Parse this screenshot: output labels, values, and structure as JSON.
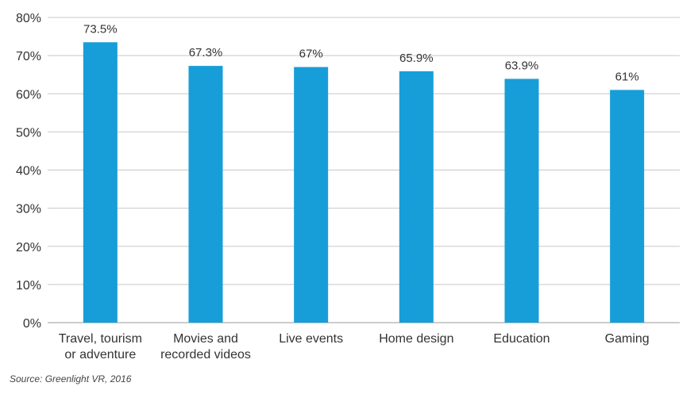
{
  "chart_data": {
    "type": "bar",
    "categories": [
      [
        "Travel, tourism",
        "or adventure"
      ],
      [
        "Movies and",
        "recorded videos"
      ],
      [
        "Live events"
      ],
      [
        "Home design"
      ],
      [
        "Education"
      ],
      [
        "Gaming"
      ]
    ],
    "values": [
      73.5,
      67.3,
      67,
      65.9,
      63.9,
      61
    ],
    "data_labels": [
      "73.5%",
      "67.3%",
      "67%",
      "65.9%",
      "63.9%",
      "61%"
    ],
    "y_ticks": [
      "0%",
      "10%",
      "20%",
      "30%",
      "40%",
      "50%",
      "60%",
      "70%",
      "80%"
    ],
    "ylim": [
      0,
      80
    ],
    "grid": true,
    "bar_color": "#179ed9"
  },
  "source": "Source: Greenlight VR, 2016"
}
